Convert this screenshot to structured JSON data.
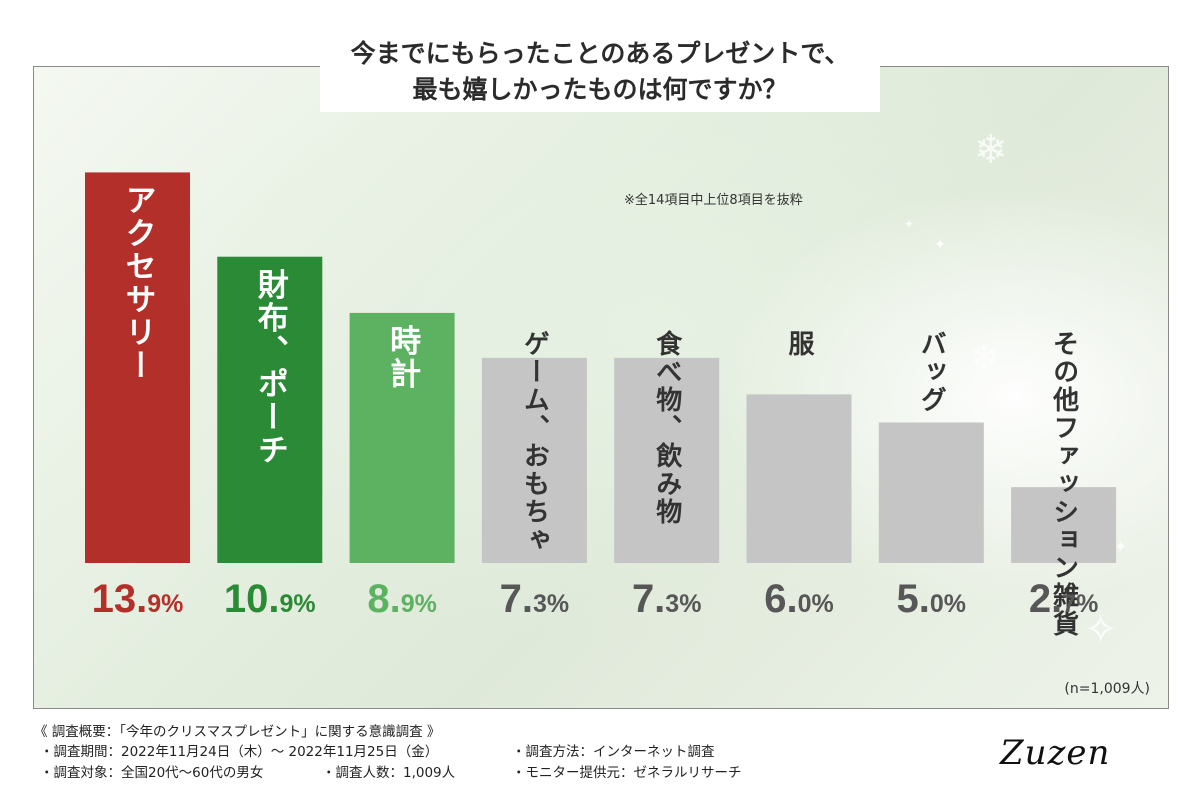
{
  "title": "今までにもらったことのあるプレゼントで、\n最も嬉しかったものは何ですか？",
  "note": "※全14項目中上位8項目を抜粋",
  "n_note": "(n=1,009人)",
  "colors": {
    "accent_red": "#b3302a",
    "accent_green": "#2b8a35",
    "light_green": "#5db262",
    "gray": "#c5c5c5",
    "label_gray": "#575757"
  },
  "chart_data": {
    "type": "bar",
    "title": "今までにもらったことのあるプレゼントで、最も嬉しかったものは何ですか？",
    "categories": [
      "アクセサリー",
      "財布、ポーチ",
      "時計",
      "ゲーム、おもちゃ",
      "食べ物、飲み物",
      "服",
      "バッグ",
      "その他ファッション雑貨"
    ],
    "values": [
      13.9,
      10.9,
      8.9,
      7.3,
      7.3,
      6.0,
      5.0,
      2.7
    ],
    "value_labels": [
      {
        "num": "13.",
        "dec": "9%"
      },
      {
        "num": "10.",
        "dec": "9%"
      },
      {
        "num": "8.",
        "dec": "9%"
      },
      {
        "num": "7.",
        "dec": "3%"
      },
      {
        "num": "7.",
        "dec": "3%"
      },
      {
        "num": "6.",
        "dec": "0%"
      },
      {
        "num": "5.",
        "dec": "0%"
      },
      {
        "num": "2.",
        "dec": "7%"
      }
    ],
    "bar_colors": [
      "#b3302a",
      "#2b8a35",
      "#5db262",
      "#c5c5c5",
      "#c5c5c5",
      "#c5c5c5",
      "#c5c5c5",
      "#c5c5c5"
    ],
    "label_colors": [
      "#b3302a",
      "#2b8a35",
      "#5db262",
      "#575757",
      "#575757",
      "#575757",
      "#575757",
      "#575757"
    ],
    "category_text_colors": [
      "#ffffff",
      "#ffffff",
      "#ffffff",
      "#333333",
      "#333333",
      "#333333",
      "#333333",
      "#333333"
    ],
    "unit": "%",
    "sample_size": "n=1,009人"
  },
  "footer": {
    "heading": "《 調査概要：「今年のクリスマスプレゼント」に関する意識調査 》",
    "period": "・調査期間：2022年11月24日（木）～ 2022年11月25日（金）",
    "method": "・調査方法：インターネット調査",
    "target": "・調査対象：全国20代～60代の男女",
    "count": "・調査人数：1,009人",
    "provider": "・モニター提供元：ゼネラルリサーチ"
  },
  "logo": "Zuzen"
}
